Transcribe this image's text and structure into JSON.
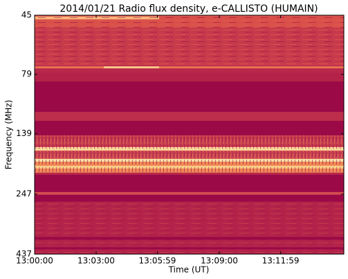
{
  "chart_data": {
    "type": "heatmap",
    "title": "2014/01/21  Radio flux density, e-CALLISTO (HUMAIN)",
    "x_label": "Time (UT)",
    "y_label": "Frequency (MHz)",
    "xlim": [
      0,
      904
    ],
    "xticks": [
      {
        "value": 0,
        "label": "13:00:00"
      },
      {
        "value": 180,
        "label": "13:03:00"
      },
      {
        "value": 359,
        "label": "13:05:59"
      },
      {
        "value": 540,
        "label": "13:09:00"
      },
      {
        "value": 719,
        "label": "13:11:59"
      }
    ],
    "ylim": [
      45,
      437
    ],
    "yticks": [
      45,
      79,
      139,
      247,
      437
    ],
    "y_log_scale": true,
    "y_inverted": true
  }
}
